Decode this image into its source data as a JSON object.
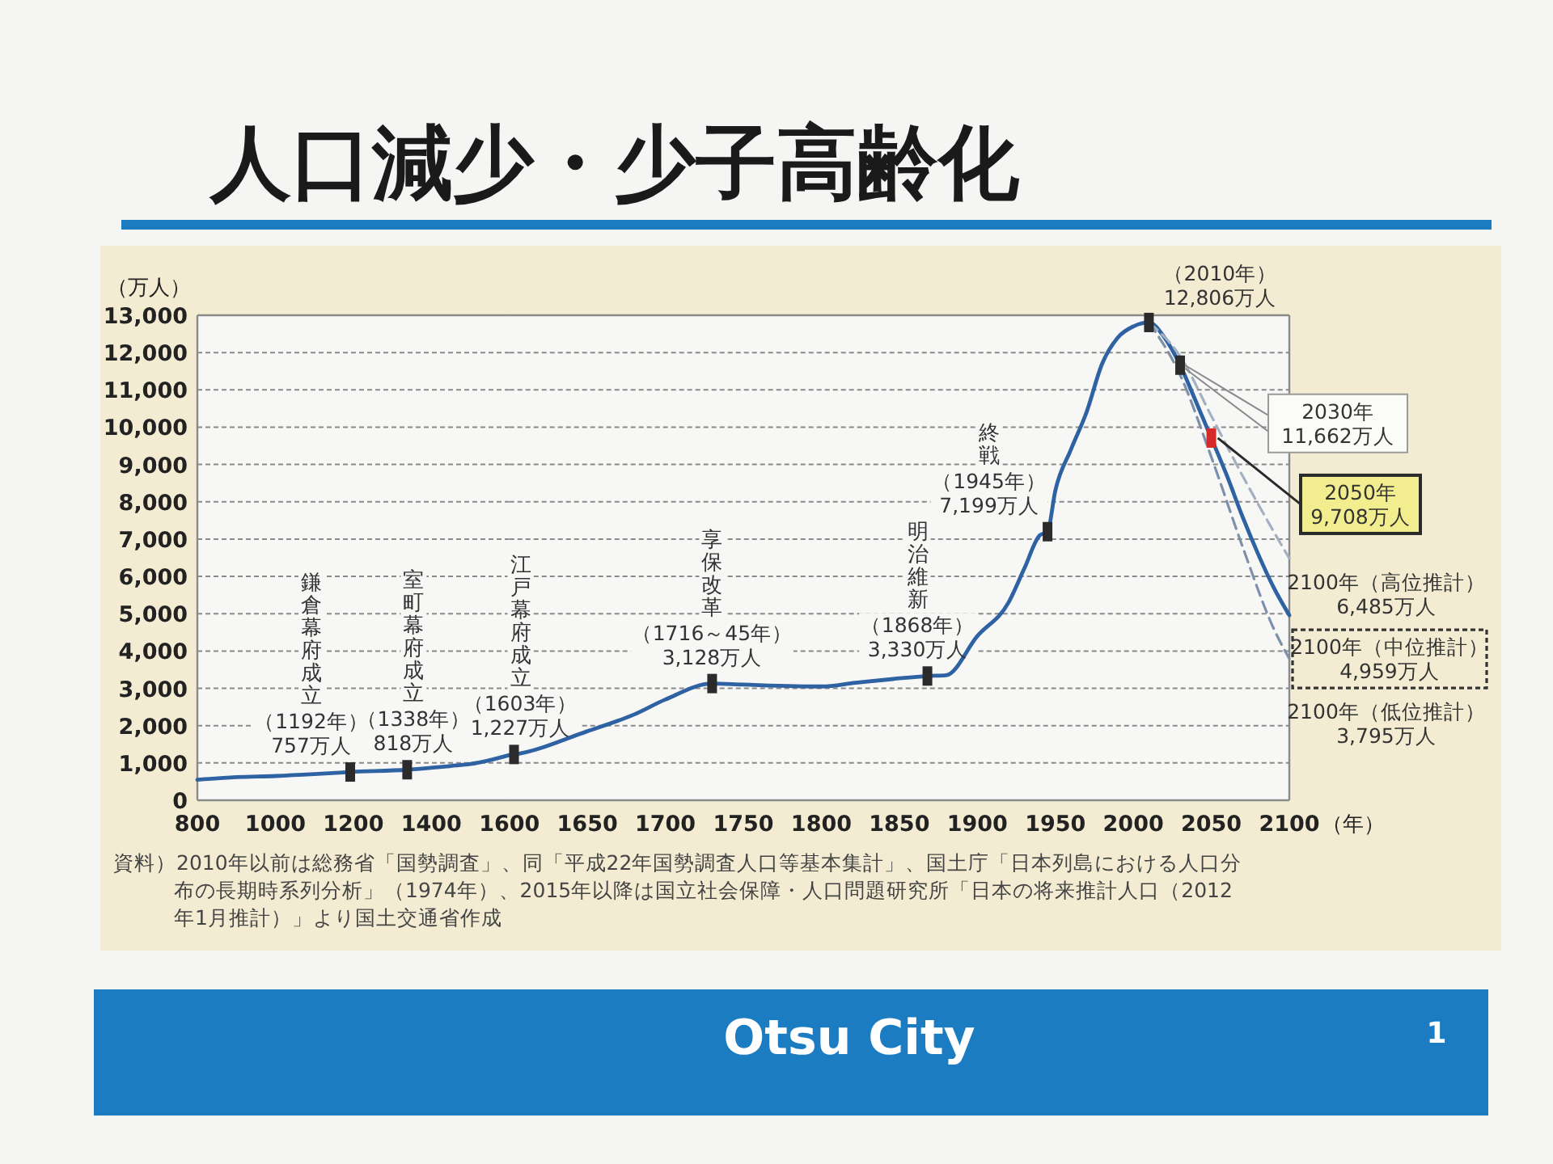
{
  "chart_data": [
    {
      "type": "line",
      "title": "人口減少・少子高齢化",
      "ylabel": "（万人）",
      "xlim": [
        800,
        1600
      ],
      "xticks": [
        800,
        1000,
        1200,
        1400,
        1600
      ],
      "ylim": [
        0,
        13000
      ],
      "yticks": [
        0,
        {
          "value": 1000,
          "label": "1,000"
        },
        {
          "value": 2000,
          "label": "2,000"
        },
        {
          "value": 3000,
          "label": "3,000"
        },
        {
          "value": 4000,
          "label": "4,000"
        },
        {
          "value": 5000,
          "label": "5,000"
        },
        {
          "value": 6000,
          "label": "6,000"
        },
        {
          "value": 7000,
          "label": "7,000"
        },
        {
          "value": 8000,
          "label": "8,000"
        },
        {
          "value": 9000,
          "label": "9,000"
        },
        {
          "value": 10000,
          "label": "10,000"
        },
        {
          "value": 11000,
          "label": "11,000"
        },
        {
          "value": 12000,
          "label": "12,000"
        },
        {
          "value": 13000,
          "label": "13,000"
        }
      ],
      "grid": "y",
      "series": [
        {
          "color": "#2f62a3",
          "x": [
            800,
            900,
            1000,
            1100,
            1192,
            1338,
            1450,
            1500,
            1600
          ],
          "values": [
            550,
            620,
            650,
            700,
            757,
            818,
            920,
            970,
            1210
          ]
        },
        {
          "type": "scatter",
          "marker": "square",
          "x": [
            1192,
            1338
          ],
          "values": [
            757,
            818
          ],
          "colors": [
            "#2b2b2b",
            "#2b2b2b"
          ]
        }
      ],
      "annotations": [
        {
          "text": "（1192年）\n757万人",
          "x": 1192,
          "y": 757
        },
        {
          "text": "（1338年）\n818万人",
          "x": 1338,
          "y": 818
        },
        "鎌倉幕府成立",
        "室町幕府成立",
        "資料）2010年以前は総務省「国勢調査」、同「平成22年国勢調査人口等基本集計」、国土庁「日本列島における人口分布の長期時系列分析」（1974年）、2015年以降は国立社会保障・人口問題研究所「日本の将来推計人口（2012年1月推計）」より国土交通省作成",
        "Otsu City",
        "1"
      ]
    },
    {
      "type": "line",
      "xlabel": "（年）",
      "tick_labels": "x",
      "xlim": [
        1600,
        2100
      ],
      "xticks": [
        1650,
        1700,
        1750,
        1800,
        1850,
        1900,
        1950,
        2000,
        2050,
        2100
      ],
      "ylim": [
        0,
        13000
      ],
      "yticks": [
        0,
        1000,
        2000,
        3000,
        4000,
        5000,
        6000,
        7000,
        8000,
        9000,
        10000,
        11000,
        12000,
        13000
      ],
      "grid": "y",
      "series": [
        {
          "color": "#2f62a3",
          "x": [
            1600,
            1603,
            1650,
            1680,
            1700,
            1730,
            1750,
            1800,
            1822,
            1846,
            1868,
            1880,
            1900,
            1920,
            1930,
            1940,
            1945,
            1950,
            1960,
            1970,
            1980,
            1990,
            2000,
            2010,
            2020,
            2030,
            2040,
            2050,
            2060,
            2070,
            2080,
            2090,
            2100
          ],
          "values": [
            1210,
            1227,
            1850,
            2300,
            2700,
            3128,
            3100,
            3050,
            3150,
            3250,
            3330,
            3350,
            4400,
            5300,
            6200,
            7100,
            7199,
            8300,
            9400,
            10400,
            11700,
            12400,
            12700,
            12806,
            12400,
            11662,
            10700,
            9708,
            8700,
            7600,
            6600,
            5700,
            4959
          ]
        },
        {
          "color": "#a3b0c2",
          "line_style": "dashed",
          "x": [
            2010,
            2030,
            2050,
            2070,
            2090,
            2100
          ],
          "values": [
            12806,
            11900,
            10300,
            8700,
            7200,
            6485
          ]
        },
        {
          "color": "#7d90aa",
          "line_style": "dashed",
          "x": [
            2010,
            2030,
            2050,
            2070,
            2090,
            2100
          ],
          "values": [
            12806,
            11400,
            9200,
            6800,
            4600,
            3795
          ]
        },
        {
          "type": "scatter",
          "marker": "square",
          "x": [
            1603,
            1730,
            1868,
            1945,
            2010,
            2030,
            2050
          ],
          "values": [
            1227,
            3128,
            3330,
            7199,
            12806,
            11662,
            9708
          ],
          "colors": [
            "#2b2b2b",
            "#2b2b2b",
            "#2b2b2b",
            "#2b2b2b",
            "#2b2b2b",
            "#2b2b2b",
            "#d42a2a"
          ]
        }
      ],
      "annotations": [
        {
          "text": "（1603年）\n1,227万人",
          "x": 1603,
          "y": 1227
        },
        {
          "text": "（1716～45年）\n3,128万人",
          "x": 1730,
          "y": 3128
        },
        {
          "text": "（1868年）\n3,330万人",
          "x": 1868,
          "y": 3330
        },
        {
          "text": "（1945年）\n7,199万人",
          "x": 1945,
          "y": 7199
        },
        {
          "text": "（2010年）\n12,806万人",
          "x": 2010,
          "y": 12806
        },
        {
          "text": "2030年\n11,662万人",
          "x": 2030,
          "y": 11662
        },
        {
          "text": "2050年\n9,708万人",
          "x": 2050,
          "y": 9708
        },
        {
          "text": "2100年（高位推計）\n6,485万人",
          "x": 2100,
          "y": 6485
        },
        {
          "text": "2100年（中位推計）\n4,959万人",
          "x": 2100,
          "y": 4959
        },
        {
          "text": "2100年（低位推計）\n3,795万人",
          "x": 2100,
          "y": 3795
        },
        "江戸幕府成立",
        "享保改革",
        "明治維新",
        "終戦"
      ]
    }
  ]
}
